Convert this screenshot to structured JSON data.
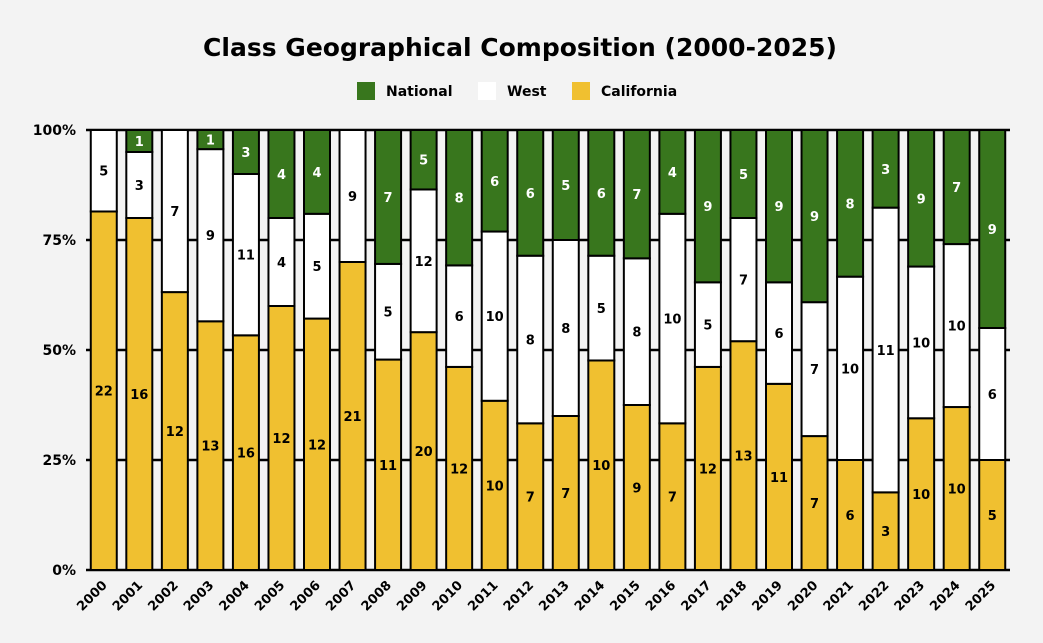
{
  "chart_data": {
    "type": "bar",
    "stacked": "percent",
    "title": "Class Geographical Composition (2000-2025)",
    "xlabel": "",
    "ylabel": "",
    "ylim": [
      0,
      100
    ],
    "y_ticks": [
      "0%",
      "25%",
      "50%",
      "75%",
      "100%"
    ],
    "legend_position": "top-center",
    "categories": [
      "2000",
      "2001",
      "2002",
      "2003",
      "2004",
      "2005",
      "2006",
      "2007",
      "2008",
      "2009",
      "2010",
      "2011",
      "2012",
      "2013",
      "2014",
      "2015",
      "2016",
      "2017",
      "2018",
      "2019",
      "2020",
      "2021",
      "2022",
      "2023",
      "2024",
      "2025"
    ],
    "series": [
      {
        "name": "California",
        "color": "#f0c030",
        "values": [
          22,
          16,
          12,
          13,
          16,
          12,
          12,
          21,
          11,
          20,
          12,
          10,
          7,
          7,
          10,
          9,
          7,
          12,
          13,
          11,
          7,
          6,
          3,
          10,
          10,
          5
        ]
      },
      {
        "name": "West",
        "color": "#ffffff",
        "values": [
          5,
          3,
          7,
          9,
          11,
          4,
          5,
          9,
          5,
          12,
          6,
          10,
          8,
          8,
          5,
          8,
          10,
          5,
          7,
          6,
          7,
          10,
          11,
          10,
          10,
          6
        ]
      },
      {
        "name": "National",
        "color": "#38761d",
        "values": [
          0,
          1,
          0,
          1,
          3,
          4,
          4,
          0,
          7,
          5,
          8,
          6,
          6,
          5,
          6,
          7,
          4,
          9,
          5,
          9,
          9,
          8,
          3,
          9,
          7,
          9
        ]
      }
    ]
  }
}
